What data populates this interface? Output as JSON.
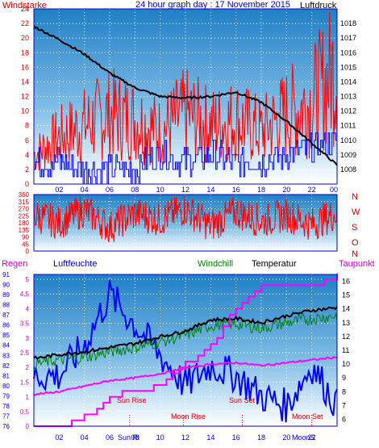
{
  "header": {
    "left_label": "Windstarke",
    "title": "24 hour graph day : 17 November 2015",
    "right_label": "Luftdruck"
  },
  "colors": {
    "wind": "#ff0000",
    "gust": "#0000ff",
    "pressure": "#000000",
    "temperature": "#000000",
    "windchill": "#008000",
    "dewpoint": "#ff00ff",
    "humidity": "#0000ff",
    "rain": "#ff00ff",
    "grid": "#ffffff",
    "astro": "#cc0000",
    "frame": "#0000ff"
  },
  "x_ticks": [
    "02",
    "04",
    "06",
    "08",
    "10",
    "12",
    "14",
    "16",
    "18",
    "20",
    "22",
    "00"
  ],
  "astro_labels": {
    "sun_rise": "Sun Rise",
    "sun_set": "Sun Set",
    "moon_rise": "Moon Rise",
    "moon_set": "Moon Set",
    "sun_short": "Sun Ri",
    "moon_short": "MoonS"
  },
  "chart_data": [
    {
      "type": "line",
      "title": "24 hour graph day : 17 November 2015",
      "left_axis": {
        "label": "Windstarke",
        "range": [
          0,
          24
        ],
        "ticks": [
          0,
          2,
          4,
          6,
          8,
          10,
          12,
          14,
          16,
          18,
          20,
          22,
          24
        ]
      },
      "right_axis": {
        "label": "Luftdruck",
        "range": [
          1007,
          1019
        ],
        "ticks": [
          1008,
          1009,
          1010,
          1011,
          1012,
          1013,
          1014,
          1015,
          1016,
          1017,
          1018
        ]
      },
      "x": [
        "00",
        "02",
        "04",
        "06",
        "08",
        "10",
        "12",
        "14",
        "16",
        "18",
        "20",
        "22",
        "00"
      ],
      "series": [
        {
          "name": "Luftdruck",
          "axis": "right",
          "values": [
            1017.8,
            1016.9,
            1015.9,
            1014.6,
            1013.6,
            1013.0,
            1012.9,
            1013.0,
            1013.3,
            1012.6,
            1011.3,
            1009.8,
            1008.3
          ]
        },
        {
          "values": [
            5,
            8,
            10,
            12,
            11,
            9,
            12,
            10,
            11,
            9,
            12,
            14,
            20
          ]
        },
        {
          "values": [
            3,
            3,
            2,
            2,
            2,
            4,
            3,
            4,
            3,
            3,
            4,
            5,
            6
          ]
        }
      ]
    },
    {
      "type": "line",
      "left_axis": {
        "range": [
          0,
          360
        ],
        "ticks": [
          0,
          45,
          90,
          135,
          180,
          225,
          270,
          315,
          360
        ]
      },
      "right_axis": {
        "ticks": [
          "N",
          "W",
          "S",
          "O",
          "N"
        ]
      },
      "series": [
        {
          "values": [
            230,
            180,
            260,
            150,
            240,
            200,
            270,
            160,
            250,
            190,
            230,
            170,
            240
          ]
        }
      ]
    },
    {
      "type": "line",
      "labels_top": [
        "Regen",
        "Luftfeuchte",
        "Windchill",
        "Temperatur",
        "Taupunkt"
      ],
      "left_axis_rain": {
        "label": "Regen",
        "range": [
          0,
          5
        ],
        "ticks": [
          "0",
          "0.5",
          "1",
          "1.5",
          "2",
          "2.5",
          "3",
          "3.5",
          "4",
          "4.5",
          "5"
        ]
      },
      "left_axis_humidity": {
        "label": "Luftfeuchte",
        "range": [
          76,
          91
        ],
        "ticks": [
          76,
          77,
          78,
          79,
          80,
          81,
          82,
          83,
          84,
          85,
          86,
          87,
          88,
          89,
          90,
          91
        ]
      },
      "right_axis": {
        "label": "Temperatur",
        "range": [
          5.5,
          16.5
        ],
        "ticks": [
          6,
          7,
          8,
          9,
          10,
          11,
          12,
          13,
          14,
          15,
          16
        ]
      },
      "x": [
        "00",
        "02",
        "04",
        "06",
        "08",
        "10",
        "12",
        "14",
        "16",
        "18",
        "20",
        "22",
        "00"
      ],
      "series": [
        {
          "name": "Temperatur",
          "values": [
            10.4,
            10.7,
            10.9,
            11.2,
            11.5,
            12.0,
            12.4,
            13.2,
            13.3,
            13.0,
            13.5,
            13.9,
            14.1
          ]
        },
        {
          "name": "Windchill",
          "values": [
            10.0,
            10.3,
            10.5,
            10.9,
            11.2,
            11.6,
            12.1,
            12.8,
            12.9,
            12.6,
            13.0,
            13.3,
            13.5
          ]
        },
        {
          "name": "Taupunkt",
          "values": [
            7.8,
            8.0,
            8.4,
            8.8,
            9.0,
            9.3,
            9.7,
            10.0,
            10.1,
            9.9,
            10.1,
            10.3,
            10.5
          ]
        },
        {
          "name": "Luftfeuchte",
          "values": [
            81,
            81,
            84,
            89,
            86,
            83,
            80,
            82,
            81,
            79,
            78,
            82,
            78
          ]
        },
        {
          "name": "Regen",
          "values": [
            0,
            0,
            0.3,
            1.0,
            1.2,
            1.4,
            2.1,
            2.8,
            4.0,
            4.8,
            4.8,
            4.8,
            5.1
          ]
        }
      ],
      "events": [
        {
          "name": "Sun Rise",
          "x": "07:35"
        },
        {
          "name": "Sun Set",
          "x": "16:30"
        },
        {
          "name": "Moon Rise",
          "x": "11:50"
        },
        {
          "name": "Moon Set",
          "x": "22:00"
        }
      ]
    }
  ]
}
